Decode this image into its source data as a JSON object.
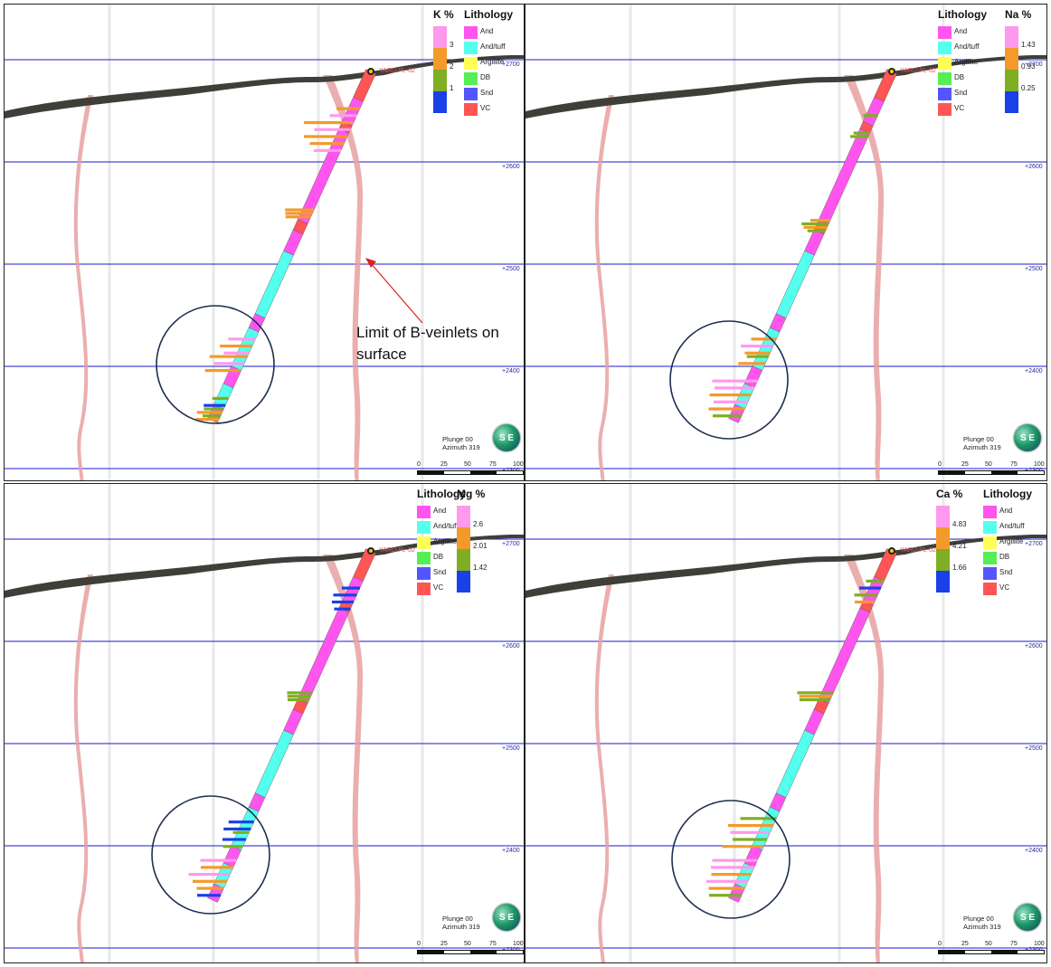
{
  "lithology_legend": {
    "title": "Lithology",
    "items": [
      {
        "label": "And",
        "color": "#ff55ee"
      },
      {
        "label": "And/tuff",
        "color": "#55ffee"
      },
      {
        "label": "Argillite",
        "color": "#ffff55"
      },
      {
        "label": "DB",
        "color": "#55ee55"
      },
      {
        "label": "Snd",
        "color": "#5555ff"
      },
      {
        "label": "VC",
        "color": "#ff5555"
      }
    ]
  },
  "panels": [
    {
      "id": "k",
      "assay_title": "K %",
      "scale_labels": [
        "3",
        "2",
        "1"
      ],
      "scale_colors": [
        "#ff99ee",
        "#f39a2b",
        "#7fae23",
        "#1a40e8"
      ],
      "hole_label": "YARD-PL-02"
    },
    {
      "id": "na",
      "assay_title": "Na %",
      "scale_labels": [
        "1.43",
        "0.93",
        "0.25"
      ],
      "scale_colors": [
        "#ff99ee",
        "#f39a2b",
        "#7fae23",
        "#1a40e8"
      ],
      "hole_label": "YARD-PL-02"
    },
    {
      "id": "mg",
      "assay_title": "Mg %",
      "scale_labels": [
        "2.6",
        "2.01",
        "1.42"
      ],
      "scale_colors": [
        "#ff99ee",
        "#f39a2b",
        "#7fae23",
        "#1a40e8"
      ],
      "hole_label": "YARD-PL-02"
    },
    {
      "id": "ca",
      "assay_title": "Ca %",
      "scale_labels": [
        "4.83",
        "4.21",
        "1.66"
      ],
      "scale_colors": [
        "#ff99ee",
        "#f39a2b",
        "#7fae23",
        "#1a40e8"
      ],
      "hole_label": "YARD-PL-02"
    }
  ],
  "elevations": [
    "+2700",
    "+2600",
    "+2500",
    "+2400",
    "+2300"
  ],
  "view": {
    "plunge": "Plunge 00",
    "azimuth": "Azimuth 319"
  },
  "scale_bar": [
    "0",
    "25",
    "50",
    "75",
    "100"
  ],
  "logo_text": "S E",
  "annotation": {
    "line1": "Limit of B-veinlets on",
    "line2": "surface"
  },
  "colors": {
    "grid_line": "#1a1ad0",
    "topography": "#3f3f3a",
    "veinlet_limit": "#e8a0a0",
    "circle": "#1e2e50",
    "arrow": "#e02020"
  }
}
